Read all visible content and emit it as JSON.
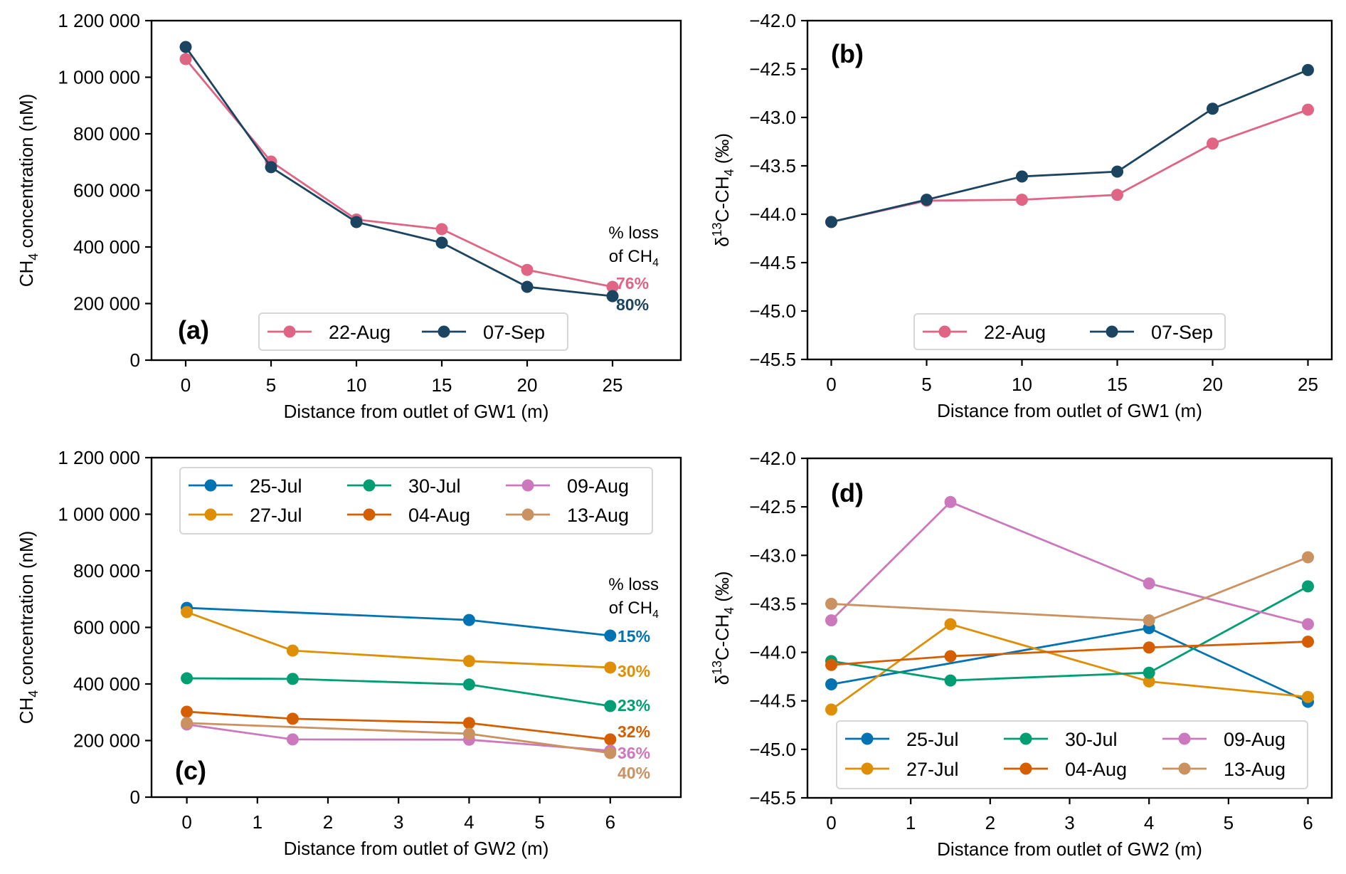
{
  "chart_data": [
    {
      "id": "a",
      "type": "line",
      "panel_label": "(a)",
      "xlabel": "Distance from outlet of GW1 (m)",
      "ylabel": "CH4 concentration (nM)",
      "ylabel_parts": {
        "pre": "CH",
        "sub": "4",
        "post": " concentration (nM)"
      },
      "xlim": [
        -2,
        29
      ],
      "ylim": [
        0,
        1200000
      ],
      "xticks": [
        0,
        5,
        10,
        15,
        20,
        25
      ],
      "xtick_labels": [
        "0",
        "5",
        "10",
        "15",
        "20",
        "25"
      ],
      "yticks": [
        0,
        200000,
        400000,
        600000,
        800000,
        1000000,
        1200000
      ],
      "ytick_labels": [
        "0",
        "200 000",
        "400 000",
        "600 000",
        "800 000",
        "1 000 000",
        "1 200 000"
      ],
      "grid": false,
      "legend": {
        "placement": "bottom-center",
        "columns": 2
      },
      "x": [
        0,
        5,
        10,
        15,
        20,
        25
      ],
      "series": [
        {
          "name": "22-Aug",
          "color": "#E06483",
          "values": [
            1064000,
            702000,
            497000,
            463000,
            319000,
            259000
          ],
          "loss_label": "76%"
        },
        {
          "name": "07-Sep",
          "color": "#1B4461",
          "values": [
            1107000,
            682000,
            488000,
            415000,
            259000,
            226000
          ],
          "loss_label": "80%"
        }
      ],
      "annotation": {
        "line1": "% loss",
        "line2_pre": "of CH",
        "line2_sub": "4"
      }
    },
    {
      "id": "b",
      "type": "line",
      "panel_label": "(b)",
      "xlabel": "Distance from outlet of GW1 (m)",
      "ylabel": "δ13C-CH4 (‰)",
      "ylabel_parts": {
        "pre": "δ",
        "sup": "13",
        "mid": "C-CH",
        "sub": "4",
        "post": " (‰)"
      },
      "xlim": [
        -1.25,
        26.25
      ],
      "ylim": [
        -45.5,
        -42.0
      ],
      "xticks": [
        0,
        5,
        10,
        15,
        20,
        25
      ],
      "xtick_labels": [
        "0",
        "5",
        "10",
        "15",
        "20",
        "25"
      ],
      "yticks": [
        -45.5,
        -45.0,
        -44.5,
        -44.0,
        -43.5,
        -43.0,
        -42.5,
        -42.0
      ],
      "ytick_labels": [
        "−45.5",
        "−45.0",
        "−44.5",
        "−44.0",
        "−43.5",
        "−43.0",
        "−42.5",
        "−42.0"
      ],
      "grid": false,
      "legend": {
        "placement": "bottom-center",
        "columns": 2
      },
      "x": [
        0,
        5,
        10,
        15,
        20,
        25
      ],
      "series": [
        {
          "name": "22-Aug",
          "color": "#E06483",
          "values": [
            -44.08,
            -43.86,
            -43.85,
            -43.8,
            -43.27,
            -42.92
          ]
        },
        {
          "name": "07-Sep",
          "color": "#1B4461",
          "values": [
            -44.08,
            -43.85,
            -43.61,
            -43.56,
            -42.91,
            -42.51
          ]
        }
      ]
    },
    {
      "id": "c",
      "type": "line",
      "panel_label": "(c)",
      "xlabel": "Distance from outlet of GW2 (m)",
      "ylabel": "CH4 concentration (nM)",
      "ylabel_parts": {
        "pre": "CH",
        "sub": "4",
        "post": " concentration (nM)"
      },
      "xlim": [
        -0.5,
        7.0
      ],
      "ylim": [
        0,
        1200000
      ],
      "xticks": [
        0,
        1,
        2,
        3,
        4,
        5,
        6
      ],
      "xtick_labels": [
        "0",
        "1",
        "2",
        "3",
        "4",
        "5",
        "6"
      ],
      "yticks": [
        0,
        200000,
        400000,
        600000,
        800000,
        1000000,
        1200000
      ],
      "ytick_labels": [
        "0",
        "200 000",
        "400 000",
        "600 000",
        "800 000",
        "1 000 000",
        "1 200 000"
      ],
      "grid": false,
      "legend": {
        "placement": "top-center",
        "columns": 3
      },
      "series": [
        {
          "name": "25-Jul",
          "color": "#0173B2",
          "x": [
            0,
            4,
            6
          ],
          "values": [
            669000,
            626000,
            571000
          ],
          "loss_label": "15%"
        },
        {
          "name": "27-Jul",
          "color": "#DE8F05",
          "x": [
            0,
            1.5,
            4,
            6
          ],
          "values": [
            654000,
            518000,
            481000,
            458000
          ],
          "loss_label": "30%"
        },
        {
          "name": "30-Jul",
          "color": "#029E73",
          "x": [
            0,
            1.5,
            4,
            6
          ],
          "values": [
            420000,
            418000,
            398000,
            322000
          ],
          "loss_label": "23%"
        },
        {
          "name": "04-Aug",
          "color": "#D55E00",
          "x": [
            0,
            1.5,
            4,
            6
          ],
          "values": [
            302000,
            277000,
            262000,
            204000
          ],
          "loss_label": "32%"
        },
        {
          "name": "09-Aug",
          "color": "#CC78BC",
          "x": [
            0,
            1.5,
            4,
            6
          ],
          "values": [
            257000,
            204000,
            203000,
            164000
          ],
          "loss_label": "36%"
        },
        {
          "name": "13-Aug",
          "color": "#CA9161",
          "x": [
            0,
            4,
            6
          ],
          "values": [
            262000,
            224000,
            156000
          ],
          "loss_label": "40%"
        }
      ],
      "annotation": {
        "line1": "% loss",
        "line2_pre": "of CH",
        "line2_sub": "4"
      }
    },
    {
      "id": "d",
      "type": "line",
      "panel_label": "(d)",
      "xlabel": "Distance from outlet of GW2 (m)",
      "ylabel": "δ13C-CH4 (‰)",
      "ylabel_parts": {
        "pre": "δ",
        "sup": "13",
        "mid": "C-CH",
        "sub": "4",
        "post": " (‰)"
      },
      "xlim": [
        -0.3,
        6.3
      ],
      "ylim": [
        -45.5,
        -42.0
      ],
      "xticks": [
        0,
        1,
        2,
        3,
        4,
        5,
        6
      ],
      "xtick_labels": [
        "0",
        "1",
        "2",
        "3",
        "4",
        "5",
        "6"
      ],
      "yticks": [
        -45.5,
        -45.0,
        -44.5,
        -44.0,
        -43.5,
        -43.0,
        -42.5,
        -42.0
      ],
      "ytick_labels": [
        "−45.5",
        "−45.0",
        "−44.5",
        "−44.0",
        "−43.5",
        "−43.0",
        "−42.5",
        "−42.0"
      ],
      "grid": false,
      "legend": {
        "placement": "bottom-center",
        "columns": 3
      },
      "series": [
        {
          "name": "25-Jul",
          "color": "#0173B2",
          "x": [
            0,
            4,
            6
          ],
          "values": [
            -44.33,
            -43.75,
            -44.51
          ]
        },
        {
          "name": "27-Jul",
          "color": "#DE8F05",
          "x": [
            0,
            1.5,
            4,
            6
          ],
          "values": [
            -44.59,
            -43.71,
            -44.3,
            -44.46
          ]
        },
        {
          "name": "30-Jul",
          "color": "#029E73",
          "x": [
            0,
            1.5,
            4,
            6
          ],
          "values": [
            -44.09,
            -44.29,
            -44.21,
            -43.32
          ]
        },
        {
          "name": "04-Aug",
          "color": "#D55E00",
          "x": [
            0,
            1.5,
            4,
            6
          ],
          "values": [
            -44.13,
            -44.04,
            -43.95,
            -43.89
          ]
        },
        {
          "name": "09-Aug",
          "color": "#CC78BC",
          "x": [
            0,
            1.5,
            4,
            6
          ],
          "values": [
            -43.67,
            -42.45,
            -43.29,
            -43.71
          ]
        },
        {
          "name": "13-Aug",
          "color": "#CA9161",
          "x": [
            0,
            4,
            6
          ],
          "values": [
            -43.5,
            -43.67,
            -43.02
          ]
        }
      ]
    }
  ]
}
